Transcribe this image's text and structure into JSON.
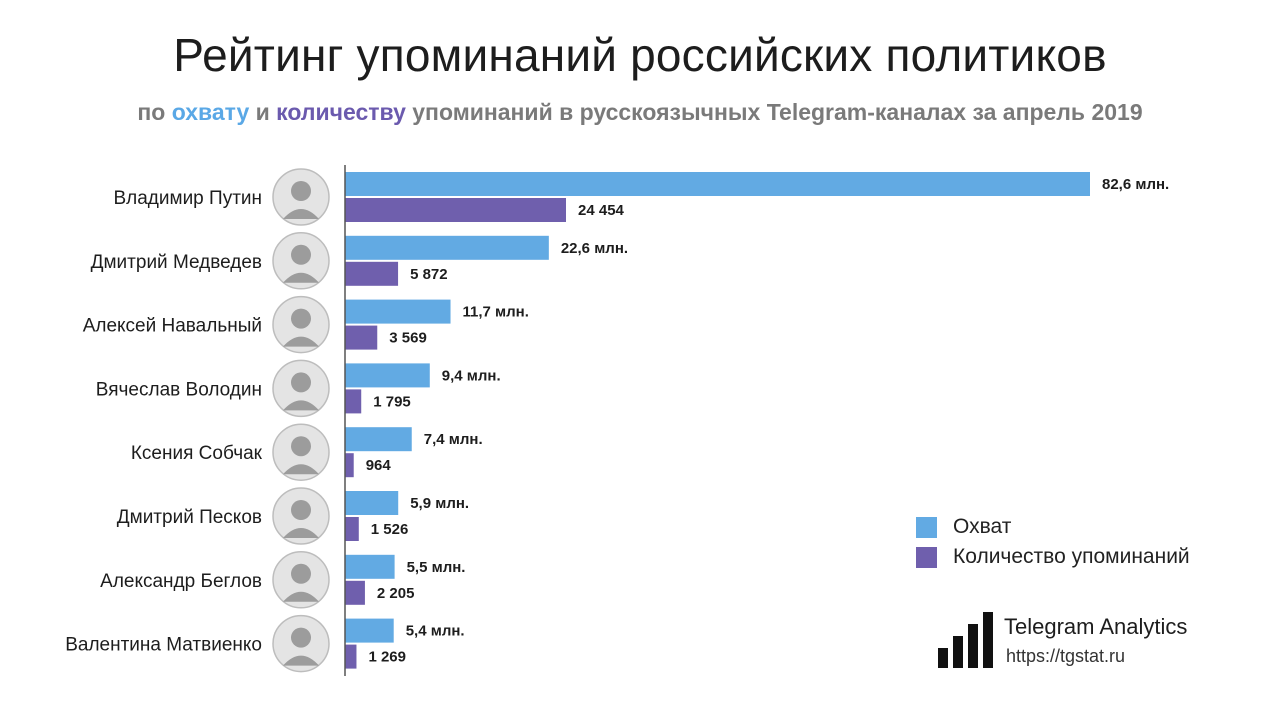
{
  "header": {
    "title": "Рейтинг упоминаний российских политиков",
    "subtitle_prefix": "по",
    "subtitle_reach": "охвату",
    "subtitle_and": "и",
    "subtitle_count": "количеству",
    "subtitle_suffix": "упоминаний в русскоязычных Telegram-каналах за апрель 2019"
  },
  "legend": {
    "reach_label": "Охват",
    "count_label": "Количество упоминаний"
  },
  "brand": {
    "name": "Telegram Analytics",
    "url": "https://tgstat.ru"
  },
  "colors": {
    "reach": "#62aae3",
    "count": "#6f5fad",
    "axis": "#555555"
  },
  "chart_data": {
    "type": "bar",
    "orientation": "horizontal",
    "categories": [
      "Владимир Путин",
      "Дмитрий Медведев",
      "Алексей Навальный",
      "Вячеслав Володин",
      "Ксения Собчак",
      "Дмитрий Песков",
      "Александр Беглов",
      "Валентина Матвиенко"
    ],
    "series": [
      {
        "name": "Охват",
        "values": [
          82.6,
          22.6,
          11.7,
          9.4,
          7.4,
          5.9,
          5.5,
          5.4
        ],
        "labels": [
          "82,6 млн.",
          "22,6 млн.",
          "11,7 млн.",
          "9,4 млн.",
          "7,4 млн.",
          "5,9 млн.",
          "5,5 млн.",
          "5,4 млн."
        ]
      },
      {
        "name": "Количество упоминаний",
        "values": [
          24454,
          5872,
          3569,
          1795,
          964,
          1526,
          2205,
          1269
        ],
        "labels": [
          "24 454",
          "5 872",
          "3 569",
          "1 795",
          "964",
          "1 526",
          "2 205",
          "1 269"
        ]
      }
    ],
    "legend_position": "right",
    "grid": false
  }
}
